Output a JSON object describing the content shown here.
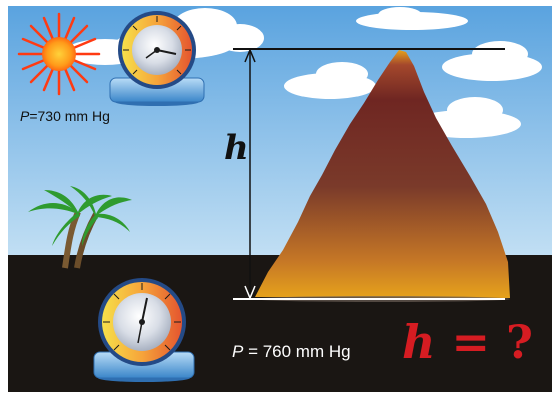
{
  "scene": {
    "colors": {
      "sky_top": "#5aa3df",
      "sky_bottom": "#c3e0f4",
      "ground": "#1a1613",
      "mountain_top": "#6f2622",
      "mountain_mid": "#7a3a2a",
      "mountain_base": "#e6a21c",
      "question_red": "#d61c22"
    },
    "top_barometer": {
      "pressure_symbol": "P",
      "pressure_text": "=730 mm Hg"
    },
    "bottom_barometer": {
      "pressure_symbol": "P",
      "pressure_text": " = 760 mm Hg"
    },
    "height_label": "h",
    "question": {
      "variable": "h",
      "equals": " = ",
      "mark": "?"
    }
  }
}
